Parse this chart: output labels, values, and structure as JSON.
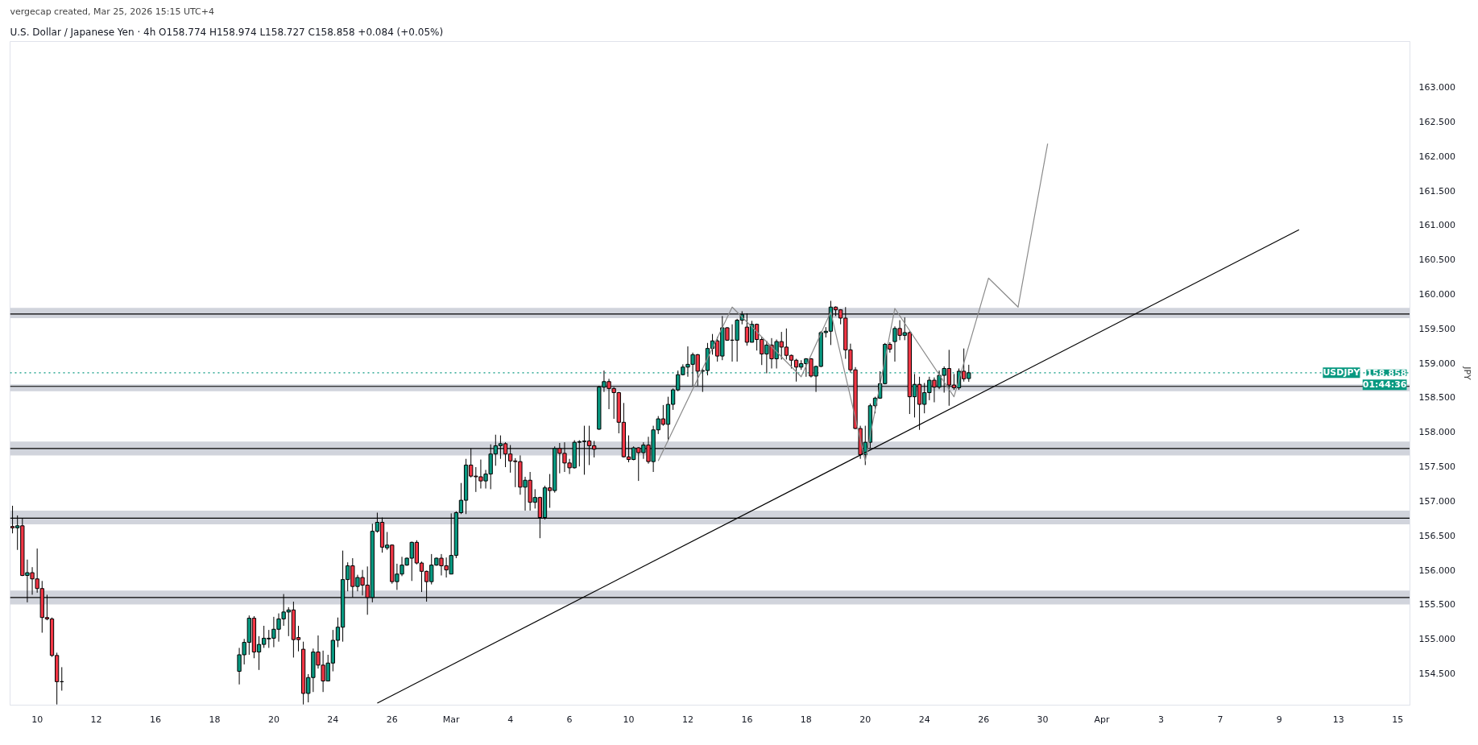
{
  "chart_data": {
    "type": "candlestick",
    "title": "U.S. Dollar / Japanese Yen · 4h  O158.774  H158.974  L158.727  C158.858  +0.084 (+0.05%)",
    "subtitle": "vergecap created, Mar 25, 2026 15:15 UTC+4",
    "ylabel": "JPY",
    "categories": [
      null,
      null,
      null,
      null,
      null,
      "10",
      null,
      null,
      null,
      null,
      null,
      null,
      null,
      null,
      null,
      null,
      null,
      "12",
      null,
      null,
      null,
      null,
      null,
      null,
      null,
      null,
      null,
      null,
      null,
      "16",
      null,
      null,
      null,
      null,
      null,
      null,
      null,
      null,
      null,
      null,
      null,
      "18",
      null,
      null,
      null,
      null,
      null,
      null,
      null,
      null,
      null,
      null,
      null,
      "20",
      null,
      null,
      null,
      null,
      null,
      null,
      null,
      null,
      null,
      null,
      null,
      "24",
      null,
      null,
      null,
      null,
      null,
      null,
      null,
      null,
      null,
      null,
      null,
      "26",
      null,
      null,
      null,
      null,
      null,
      null,
      null,
      null,
      null,
      null,
      null,
      "Mar",
      null,
      null,
      null,
      null,
      null,
      null,
      null,
      null,
      null,
      null,
      null,
      "4",
      null,
      null,
      null,
      null,
      null,
      null,
      null,
      null,
      null,
      null,
      null,
      "6",
      null,
      null,
      null,
      null,
      null,
      null,
      null,
      null,
      null,
      null,
      null,
      "10",
      null,
      null,
      null,
      null,
      null,
      null,
      null,
      null,
      null,
      null,
      null,
      "12",
      null,
      null,
      null,
      null,
      null,
      null,
      null,
      null,
      null,
      null,
      null,
      "16",
      null,
      null,
      null,
      null,
      null,
      null,
      null,
      null,
      null,
      null,
      null,
      "18",
      null,
      null,
      null,
      null,
      null,
      null,
      null,
      null,
      null,
      null,
      null,
      "20",
      null,
      null,
      null,
      null,
      null,
      null,
      null,
      null,
      null,
      null,
      null,
      "24",
      null,
      null,
      null,
      null,
      null,
      null,
      null,
      null,
      null,
      null,
      null,
      "26",
      null,
      null,
      null,
      null,
      null,
      null,
      null,
      null,
      null,
      null,
      null,
      "30",
      null,
      null,
      null,
      null,
      null,
      null,
      null,
      null,
      null,
      null,
      null,
      "Apr",
      null,
      null,
      null,
      null,
      null,
      null,
      null,
      null,
      null,
      null,
      null,
      "3",
      null,
      null,
      null,
      null,
      null,
      null,
      null,
      null,
      null,
      null,
      null,
      "7",
      null,
      null,
      null,
      null,
      null,
      null,
      null,
      null,
      null,
      null,
      null,
      "9",
      null,
      null,
      null,
      null,
      null,
      null,
      null,
      null,
      null,
      null,
      null,
      "13",
      null,
      null,
      null,
      null,
      null,
      null,
      null,
      null,
      null,
      null,
      null,
      "15",
      null,
      null
    ],
    "ylim": [
      154.04,
      163.66
    ],
    "yticks": [
      {
        "value": 154.5,
        "label": "154.500"
      },
      {
        "value": 155,
        "label": "155.000"
      },
      {
        "value": 155.5,
        "label": "155.500"
      },
      {
        "value": 156,
        "label": "156.000"
      },
      {
        "value": 156.5,
        "label": "156.500"
      },
      {
        "value": 157,
        "label": "157.000"
      },
      {
        "value": 157.5,
        "label": "157.500"
      },
      {
        "value": 158,
        "label": "158.000"
      },
      {
        "value": 158.5,
        "label": "158.500"
      },
      {
        "value": 159,
        "label": "159.000"
      },
      {
        "value": 159.5,
        "label": "159.500"
      },
      {
        "value": 160,
        "label": "160.000"
      },
      {
        "value": 160.5,
        "label": "160.500"
      },
      {
        "value": 161,
        "label": "161.000"
      },
      {
        "value": 161.5,
        "label": "161.500"
      },
      {
        "value": 162,
        "label": "162.000"
      },
      {
        "value": 162.5,
        "label": "162.500"
      },
      {
        "value": 163,
        "label": "163.000"
      }
    ],
    "bands": [
      {
        "axis": "y",
        "from": 159.65,
        "to": 159.8,
        "color": "#d1d4dc"
      },
      {
        "axis": "y",
        "from": 158.59,
        "to": 158.69,
        "color": "#d1d4dc"
      },
      {
        "axis": "y",
        "from": 157.66,
        "to": 157.86,
        "color": "#d1d4dc"
      },
      {
        "axis": "y",
        "from": 156.66,
        "to": 156.86,
        "color": "#d1d4dc"
      },
      {
        "axis": "y",
        "from": 155.5,
        "to": 155.7,
        "color": "#d1d4dc"
      }
    ],
    "ref_lines": [
      {
        "axis": "y",
        "value": 159.71,
        "color": "#000000",
        "line_style": "solid"
      },
      {
        "axis": "y",
        "value": 158.66,
        "color": "#000000",
        "line_style": "solid"
      },
      {
        "axis": "y",
        "value": 157.76,
        "color": "#000000",
        "line_style": "solid"
      },
      {
        "axis": "y",
        "value": 156.75,
        "color": "#000000",
        "line_style": "solid"
      },
      {
        "axis": "y",
        "value": 155.6,
        "color": "#000000",
        "line_style": "solid"
      },
      {
        "axis": "y",
        "value": 158.858,
        "label": "USDJPY",
        "color": "#089981",
        "line_style": "dotted"
      }
    ],
    "annotations": [
      {
        "text": "158.858",
        "y": 158.858
      },
      {
        "text": "01:44:36",
        "y": 158.858
      }
    ],
    "series": [
      {
        "ohlc": [
          [
            156.63,
            156.93,
            156.53,
            156.61
          ],
          [
            156.61,
            156.79,
            156.29,
            156.64
          ],
          [
            156.64,
            156.75,
            155.91,
            155.92
          ],
          [
            155.92,
            156.15,
            155.53,
            155.96
          ],
          [
            155.96,
            156.04,
            155.64,
            155.87
          ],
          [
            155.87,
            156.31,
            155.67,
            155.73
          ],
          [
            155.73,
            155.84,
            155.09,
            155.31
          ],
          [
            155.31,
            155.64,
            155.27,
            155.29
          ],
          [
            155.29,
            155.31,
            154.74,
            154.76
          ],
          [
            154.76,
            154.8,
            154.05,
            154.38
          ],
          [
            154.38,
            154.59,
            154.25,
            154.38
          ],
          null,
          null,
          null,
          null,
          null,
          null,
          null,
          null,
          null,
          null,
          null,
          null,
          null,
          null,
          null,
          null,
          null,
          null,
          null,
          null,
          null,
          null,
          null,
          null,
          null,
          null,
          null,
          null,
          null,
          null,
          null,
          null,
          null,
          null,
          null,
          [
            154.53,
            154.87,
            154.34,
            154.77
          ],
          [
            154.77,
            155.0,
            154.63,
            154.95
          ],
          [
            154.95,
            155.34,
            154.77,
            155.3
          ],
          [
            155.3,
            155.33,
            154.72,
            154.81
          ],
          [
            154.81,
            155.04,
            154.55,
            154.92
          ],
          [
            154.92,
            155.19,
            154.87,
            155.01
          ],
          [
            155.0,
            155.13,
            154.87,
            155.01
          ],
          [
            155.01,
            155.32,
            154.88,
            155.14
          ],
          [
            155.14,
            155.37,
            154.96,
            155.29
          ],
          [
            155.29,
            155.65,
            155.19,
            155.39
          ],
          [
            155.39,
            155.46,
            155.04,
            155.42
          ],
          [
            155.42,
            155.54,
            154.73,
            154.99
          ],
          [
            155.02,
            155.19,
            154.82,
            154.99
          ],
          [
            154.85,
            154.96,
            154.05,
            154.21
          ],
          [
            154.21,
            154.49,
            154.08,
            154.44
          ],
          [
            154.44,
            154.86,
            154.23,
            154.81
          ],
          [
            154.81,
            155.05,
            154.57,
            154.62
          ],
          [
            154.62,
            154.83,
            154.23,
            154.39
          ],
          [
            154.39,
            154.77,
            154.39,
            154.65
          ],
          [
            154.65,
            155.13,
            154.53,
            154.98
          ],
          [
            154.98,
            155.31,
            154.88,
            155.17
          ],
          [
            155.17,
            156.28,
            154.96,
            155.86
          ],
          [
            155.86,
            156.11,
            155.69,
            156.06
          ],
          [
            156.06,
            156.17,
            155.6,
            155.76
          ],
          [
            155.76,
            155.93,
            155.69,
            155.89
          ],
          [
            155.89,
            156.0,
            155.63,
            155.78
          ],
          [
            155.78,
            156.05,
            155.35,
            155.6
          ],
          [
            155.6,
            156.67,
            155.53,
            156.56
          ],
          [
            156.56,
            156.83,
            156.54,
            156.69
          ],
          [
            156.69,
            156.76,
            156.25,
            156.33
          ],
          [
            156.32,
            156.55,
            156.29,
            156.36
          ],
          [
            156.36,
            156.37,
            155.8,
            155.83
          ],
          [
            155.83,
            156.09,
            155.71,
            155.94
          ],
          [
            155.94,
            156.19,
            155.91,
            156.07
          ],
          [
            156.07,
            156.18,
            156.06,
            156.17
          ],
          [
            156.17,
            156.41,
            155.84,
            156.4
          ],
          [
            156.4,
            156.43,
            156.08,
            156.1
          ],
          [
            156.1,
            156.12,
            155.68,
            155.98
          ],
          [
            155.98,
            155.99,
            155.54,
            155.83
          ],
          [
            155.83,
            156.23,
            155.79,
            156.07
          ],
          [
            156.07,
            156.18,
            156.06,
            156.17
          ],
          [
            156.17,
            156.23,
            155.92,
            156.06
          ],
          [
            156.06,
            156.18,
            155.89,
            156.0
          ],
          [
            155.94,
            156.82,
            155.94,
            156.21
          ],
          [
            156.21,
            156.85,
            156.17,
            156.83
          ],
          [
            156.83,
            157.26,
            156.81,
            157.01
          ],
          [
            157.01,
            157.61,
            156.81,
            157.52
          ],
          [
            157.52,
            157.76,
            157.34,
            157.36
          ],
          [
            157.36,
            157.49,
            157.13,
            157.35
          ],
          [
            157.35,
            157.6,
            157.18,
            157.29
          ],
          [
            157.29,
            157.45,
            157.18,
            157.39
          ],
          [
            157.39,
            157.82,
            157.17,
            157.68
          ],
          [
            157.68,
            157.96,
            157.51,
            157.8
          ],
          [
            157.8,
            157.95,
            157.61,
            157.83
          ],
          [
            157.83,
            157.85,
            157.49,
            157.68
          ],
          [
            157.68,
            157.81,
            157.41,
            157.58
          ],
          [
            157.58,
            157.62,
            157.2,
            157.57
          ],
          [
            157.57,
            157.66,
            157.09,
            157.2
          ],
          [
            157.2,
            157.35,
            156.86,
            157.3
          ],
          [
            157.3,
            157.42,
            156.86,
            156.98
          ],
          [
            156.98,
            157.17,
            156.89,
            157.05
          ],
          [
            157.05,
            157.06,
            156.46,
            156.76
          ],
          [
            156.76,
            157.22,
            156.73,
            157.19
          ],
          [
            157.19,
            157.39,
            156.9,
            157.15
          ],
          [
            157.15,
            157.79,
            157.12,
            157.76
          ],
          [
            157.76,
            157.84,
            157.4,
            157.69
          ],
          [
            157.69,
            157.85,
            157.42,
            157.55
          ],
          [
            157.55,
            157.61,
            157.39,
            157.48
          ],
          [
            157.48,
            157.88,
            157.47,
            157.85
          ],
          [
            157.85,
            157.88,
            157.5,
            157.86
          ],
          [
            157.86,
            158.09,
            157.38,
            157.87
          ],
          [
            157.87,
            158.09,
            157.52,
            157.8
          ],
          [
            157.8,
            157.87,
            157.63,
            157.75
          ],
          [
            158.04,
            158.67,
            158.03,
            158.65
          ],
          [
            158.65,
            158.89,
            158.58,
            158.73
          ],
          [
            158.73,
            158.77,
            158.33,
            158.63
          ],
          [
            158.63,
            158.65,
            158.19,
            158.57
          ],
          [
            158.57,
            158.58,
            157.98,
            158.14
          ],
          [
            158.14,
            158.42,
            157.63,
            157.64
          ],
          [
            157.64,
            157.95,
            157.56,
            157.6
          ],
          [
            157.6,
            157.79,
            157.59,
            157.77
          ],
          [
            157.77,
            157.78,
            157.29,
            157.7
          ],
          [
            157.7,
            157.85,
            157.61,
            157.81
          ],
          [
            157.81,
            157.93,
            157.54,
            157.57
          ],
          [
            157.57,
            158.09,
            157.42,
            158.03
          ],
          [
            158.03,
            158.23,
            157.97,
            158.19
          ],
          [
            158.19,
            158.39,
            158.09,
            158.11
          ],
          [
            158.11,
            158.51,
            157.87,
            158.4
          ],
          [
            158.4,
            158.63,
            158.32,
            158.61
          ],
          [
            158.61,
            158.89,
            158.59,
            158.83
          ],
          [
            158.83,
            158.98,
            158.82,
            158.94
          ],
          [
            158.94,
            159.24,
            158.8,
            158.98
          ],
          [
            158.98,
            159.15,
            158.67,
            159.12
          ],
          [
            159.12,
            159.13,
            158.67,
            158.88
          ],
          [
            158.88,
            158.92,
            158.58,
            158.89
          ],
          [
            158.89,
            159.29,
            158.82,
            159.21
          ],
          [
            159.21,
            159.42,
            159.12,
            159.32
          ],
          [
            159.32,
            159.38,
            159.02,
            159.1
          ],
          [
            159.1,
            159.68,
            159.04,
            159.51
          ],
          [
            159.51,
            159.52,
            159.32,
            159.33
          ],
          [
            159.33,
            159.56,
            159.02,
            159.33
          ],
          [
            159.33,
            159.64,
            159.02,
            159.62
          ],
          [
            159.62,
            159.75,
            159.56,
            159.7
          ],
          [
            159.52,
            159.72,
            159.25,
            159.3
          ],
          [
            159.3,
            159.61,
            159.3,
            159.56
          ],
          [
            159.56,
            159.57,
            159.18,
            159.34
          ],
          [
            159.34,
            159.38,
            158.97,
            159.13
          ],
          [
            159.13,
            159.32,
            158.85,
            159.26
          ],
          [
            159.26,
            159.36,
            158.92,
            159.06
          ],
          [
            159.06,
            159.34,
            158.92,
            159.31
          ],
          [
            159.31,
            159.45,
            159.05,
            159.23
          ],
          [
            159.23,
            159.5,
            159.05,
            159.11
          ],
          [
            159.11,
            159.12,
            158.92,
            159.04
          ],
          [
            159.04,
            159.06,
            158.73,
            158.94
          ],
          [
            158.94,
            159.04,
            158.9,
            158.99
          ],
          [
            158.99,
            159.07,
            158.8,
            159.06
          ],
          [
            159.06,
            159.07,
            158.79,
            158.81
          ],
          [
            158.81,
            158.96,
            158.58,
            158.95
          ],
          [
            158.95,
            159.46,
            158.94,
            159.44
          ],
          [
            159.44,
            159.52,
            159.37,
            159.46
          ],
          [
            159.46,
            159.9,
            159.26,
            159.81
          ],
          [
            159.81,
            159.82,
            159.68,
            159.77
          ],
          [
            159.77,
            159.78,
            159.56,
            159.65
          ],
          [
            159.65,
            159.81,
            159.06,
            159.19
          ],
          [
            159.19,
            159.28,
            158.86,
            158.9
          ],
          [
            158.9,
            158.94,
            158.04,
            158.05
          ],
          [
            158.05,
            158.09,
            157.61,
            157.67
          ],
          [
            157.67,
            158.09,
            157.52,
            157.85
          ],
          [
            157.85,
            158.41,
            157.77,
            158.38
          ],
          [
            158.38,
            158.51,
            158.27,
            158.49
          ],
          [
            158.49,
            158.88,
            158.48,
            158.7
          ],
          [
            158.7,
            159.29,
            158.69,
            159.27
          ],
          [
            159.27,
            159.3,
            159.15,
            159.2
          ],
          [
            159.31,
            159.53,
            159.02,
            159.5
          ],
          [
            159.5,
            159.62,
            159.33,
            159.4
          ],
          [
            159.4,
            159.66,
            159.33,
            159.44
          ],
          [
            159.44,
            159.46,
            158.26,
            158.51
          ],
          [
            158.51,
            158.84,
            158.21,
            158.69
          ],
          [
            158.69,
            158.8,
            158.03,
            158.4
          ],
          [
            158.4,
            158.71,
            158.27,
            158.57
          ],
          [
            158.57,
            158.8,
            158.46,
            158.75
          ],
          [
            158.75,
            158.79,
            158.43,
            158.65
          ],
          [
            158.65,
            158.89,
            158.62,
            158.82
          ],
          [
            158.82,
            158.95,
            158.57,
            158.92
          ],
          [
            158.92,
            159.19,
            158.38,
            158.68
          ],
          [
            158.68,
            158.84,
            158.61,
            158.64
          ],
          [
            158.64,
            158.92,
            158.61,
            158.88
          ],
          [
            158.88,
            159.21,
            158.73,
            158.77
          ],
          [
            158.774,
            158.974,
            158.727,
            158.858
          ],
          null,
          null,
          null,
          null,
          null,
          null,
          null,
          null,
          null,
          null,
          null,
          null,
          null,
          null,
          null,
          null,
          null,
          null,
          null,
          null,
          null,
          null,
          null,
          null,
          null,
          null,
          null,
          null,
          null,
          null,
          null,
          null,
          null,
          null,
          null,
          null,
          null,
          null,
          null,
          null,
          null,
          null,
          null,
          null,
          null,
          null,
          null,
          null,
          null,
          null,
          null,
          null,
          null,
          null,
          null,
          null,
          null,
          null,
          null,
          null,
          null,
          null,
          null,
          null,
          null,
          null,
          null,
          null,
          null,
          null,
          null,
          null,
          null,
          null,
          null,
          null,
          null,
          null,
          null,
          null,
          null,
          null,
          null,
          null,
          null,
          null,
          null,
          null,
          null
        ],
        "colors": [
          "#f23645",
          "#089981",
          "#f23645",
          "#089981",
          "#f23645",
          "#f23645",
          "#f23645",
          "#f23645",
          "#f23645",
          "#f23645",
          "#000000",
          null,
          null,
          null,
          null,
          null,
          null,
          null,
          null,
          null,
          null,
          null,
          null,
          null,
          null,
          null,
          null,
          null,
          null,
          null,
          null,
          null,
          null,
          null,
          null,
          null,
          null,
          null,
          null,
          null,
          null,
          null,
          null,
          null,
          null,
          null,
          "#089981",
          "#089981",
          "#089981",
          "#f23645",
          "#089981",
          "#089981",
          "#089981",
          "#089981",
          "#089981",
          "#089981",
          "#089981",
          "#f23645",
          "#f23645",
          "#f23645",
          "#089981",
          "#089981",
          "#f23645",
          "#f23645",
          "#089981",
          "#089981",
          "#089981",
          "#089981",
          "#089981",
          "#f23645",
          "#089981",
          "#f23645",
          "#f23645",
          "#089981",
          "#089981",
          "#f23645",
          "#089981",
          "#f23645",
          "#089981",
          "#089981",
          "#089981",
          "#089981",
          "#f23645",
          "#f23645",
          "#f23645",
          "#089981",
          "#089981",
          "#f23645",
          "#f23645",
          "#089981",
          "#089981",
          "#089981",
          "#089981",
          "#f23645",
          "#f23645",
          "#f23645",
          "#089981",
          "#089981",
          "#089981",
          "#089981",
          "#f23645",
          "#f23645",
          "#f23645",
          "#f23645",
          "#089981",
          "#f23645",
          "#089981",
          "#f23645",
          "#089981",
          "#f23645",
          "#089981",
          "#f23645",
          "#f23645",
          "#f23645",
          "#089981",
          "#089981",
          "#089981",
          "#f23645",
          "#f23645",
          "#089981",
          "#089981",
          "#f23645",
          "#f23645",
          "#f23645",
          "#f23645",
          "#f23645",
          "#089981",
          "#f23645",
          "#089981",
          "#f23645",
          "#089981",
          "#089981",
          "#f23645",
          "#089981",
          "#089981",
          "#089981",
          "#089981",
          "#089981",
          "#089981",
          "#f23645",
          "#089981",
          "#089981",
          "#089981",
          "#f23645",
          "#089981",
          "#f23645",
          "#000000",
          "#089981",
          "#089981",
          "#f23645",
          "#089981",
          "#f23645",
          "#f23645",
          "#089981",
          "#f23645",
          "#089981",
          "#f23645",
          "#f23645",
          "#f23645",
          "#f23645",
          "#089981",
          "#089981",
          "#f23645",
          "#089981",
          "#089981",
          "#089981",
          "#089981",
          "#f23645",
          "#f23645",
          "#f23645",
          "#f23645",
          "#f23645",
          "#f23645",
          "#089981",
          "#089981",
          "#089981",
          "#089981",
          "#089981",
          "#f23645",
          "#089981",
          "#f23645",
          "#089981",
          "#f23645",
          "#089981",
          "#f23645",
          "#089981",
          "#089981",
          "#f23645",
          "#089981",
          "#089981",
          "#f23645",
          "#f23645",
          "#089981",
          "#f23645",
          "#089981",
          null,
          null,
          null,
          null,
          null,
          null,
          null,
          null,
          null,
          null,
          null,
          null,
          null,
          null,
          null,
          null,
          null,
          null,
          null,
          null,
          null,
          null,
          null,
          null,
          null,
          null,
          null,
          null,
          null,
          null,
          null,
          null,
          null,
          null,
          null,
          null,
          null,
          null,
          null,
          null,
          null,
          null,
          null,
          null,
          null,
          null,
          null,
          null,
          null,
          null,
          null,
          null,
          null,
          null,
          null,
          null,
          null,
          null,
          null,
          null,
          null,
          null,
          null,
          null,
          null,
          null,
          null,
          null,
          null,
          null,
          null,
          null,
          null,
          null,
          null,
          null,
          null,
          null,
          null,
          null,
          null,
          null,
          null,
          null,
          null,
          null,
          null,
          null,
          null
        ]
      },
      {
        "type": "line",
        "color": "#000000",
        "values": [
          null,
          null,
          null,
          null,
          null,
          null,
          null,
          null,
          null,
          null,
          null,
          null,
          null,
          null,
          null,
          null,
          null,
          null,
          null,
          null,
          null,
          null,
          null,
          null,
          null,
          null,
          null,
          null,
          null,
          null,
          null,
          null,
          null,
          null,
          null,
          null,
          null,
          null,
          null,
          null,
          null,
          null,
          null,
          null,
          null,
          null,
          null,
          null,
          null,
          null,
          null,
          null,
          null,
          null,
          null,
          null,
          null,
          null,
          null,
          null,
          null,
          null,
          null,
          null,
          null,
          null,
          null,
          null,
          null,
          null,
          null,
          null,
          null,
          null,
          154.07,
          null,
          null,
          null,
          null,
          null,
          null,
          null,
          null,
          null,
          null,
          null,
          null,
          null,
          null,
          null,
          null,
          null,
          null,
          null,
          null,
          null,
          null,
          null,
          null,
          null,
          null,
          null,
          null,
          null,
          null,
          null,
          null,
          null,
          null,
          null,
          null,
          null,
          null,
          null,
          null,
          null,
          null,
          null,
          null,
          null,
          null,
          null,
          null,
          null,
          null,
          null,
          null,
          null,
          null,
          null,
          null,
          null,
          null,
          null,
          null,
          null,
          null,
          null,
          null,
          null,
          null,
          null,
          null,
          null,
          null,
          null,
          null,
          null,
          null,
          null,
          null,
          null,
          null,
          null,
          null,
          null,
          null,
          null,
          null,
          null,
          null,
          null,
          null,
          null,
          null,
          null,
          null,
          null,
          null,
          null,
          null,
          null,
          null,
          null,
          null,
          null,
          null,
          null,
          null,
          null,
          null,
          null,
          null,
          null,
          null,
          null,
          null,
          null,
          null,
          null,
          null,
          null,
          null,
          null,
          null,
          null,
          null,
          null,
          null,
          null,
          null,
          null,
          null,
          null,
          null,
          null,
          null,
          null,
          null,
          null,
          null,
          null,
          null,
          null,
          null,
          null,
          null,
          null,
          null,
          null,
          null,
          null,
          null,
          null,
          null,
          null,
          null,
          null,
          null,
          null,
          null,
          null,
          null,
          null,
          null,
          null,
          null,
          null,
          null,
          null,
          null,
          null,
          null,
          null,
          null,
          null,
          null,
          null,
          null,
          null,
          null,
          null,
          null,
          null,
          null,
          null,
          null,
          null,
          null,
          null,
          null,
          160.93,
          null,
          null,
          null,
          null,
          null,
          null,
          null,
          null,
          null,
          null,
          null,
          null,
          null,
          null,
          null,
          null,
          null,
          null,
          null,
          null,
          null,
          null
        ]
      },
      {
        "type": "line",
        "color": "#8a8a8a",
        "values": [
          null,
          null,
          null,
          null,
          null,
          null,
          null,
          null,
          null,
          null,
          null,
          null,
          null,
          null,
          null,
          null,
          null,
          null,
          null,
          null,
          null,
          null,
          null,
          null,
          null,
          null,
          null,
          null,
          null,
          null,
          null,
          null,
          null,
          null,
          null,
          null,
          null,
          null,
          null,
          null,
          null,
          null,
          null,
          null,
          null,
          null,
          null,
          null,
          null,
          null,
          null,
          null,
          null,
          null,
          null,
          null,
          null,
          null,
          null,
          null,
          null,
          null,
          null,
          null,
          null,
          null,
          null,
          null,
          null,
          null,
          null,
          null,
          null,
          null,
          null,
          null,
          null,
          null,
          null,
          null,
          null,
          null,
          null,
          null,
          null,
          null,
          null,
          null,
          null,
          null,
          null,
          null,
          null,
          null,
          null,
          null,
          null,
          null,
          null,
          null,
          null,
          null,
          null,
          null,
          null,
          null,
          null,
          null,
          null,
          null,
          null,
          null,
          null,
          null,
          null,
          null,
          null,
          null,
          null,
          null,
          null,
          null,
          null,
          null,
          null,
          null,
          null,
          null,
          null,
          null,
          null,
          157.58,
          null,
          null,
          null,
          null,
          null,
          null,
          null,
          null,
          null,
          null,
          null,
          null,
          null,
          null,
          159.81,
          null,
          null,
          null,
          null,
          null,
          null,
          null,
          null,
          null,
          null,
          null,
          null,
          null,
          158.8,
          null,
          null,
          null,
          null,
          null,
          159.74,
          null,
          null,
          null,
          null,
          null,
          null,
          157.58,
          null,
          null,
          null,
          null,
          null,
          159.79,
          null,
          null,
          null,
          null,
          null,
          null,
          null,
          null,
          null,
          null,
          null,
          158.51,
          null,
          null,
          null,
          null,
          null,
          null,
          160.23,
          null,
          null,
          null,
          null,
          null,
          159.81,
          null,
          null,
          null,
          null,
          null,
          162.18,
          null,
          null,
          null,
          null,
          null,
          null,
          null,
          null,
          null,
          null,
          null,
          null,
          null,
          null,
          null,
          null,
          null,
          null,
          null,
          null,
          null,
          null,
          null,
          null,
          null,
          null,
          null,
          null,
          null,
          null,
          null,
          null,
          null,
          null,
          null,
          null,
          null,
          null,
          null,
          null,
          null,
          null,
          null,
          null,
          null,
          null,
          null,
          null,
          null,
          null,
          null,
          null,
          null,
          null,
          null,
          null,
          null,
          null,
          null,
          null,
          null,
          null,
          null,
          null,
          null,
          null,
          null,
          null,
          null,
          null,
          null,
          null,
          null
        ]
      }
    ]
  }
}
